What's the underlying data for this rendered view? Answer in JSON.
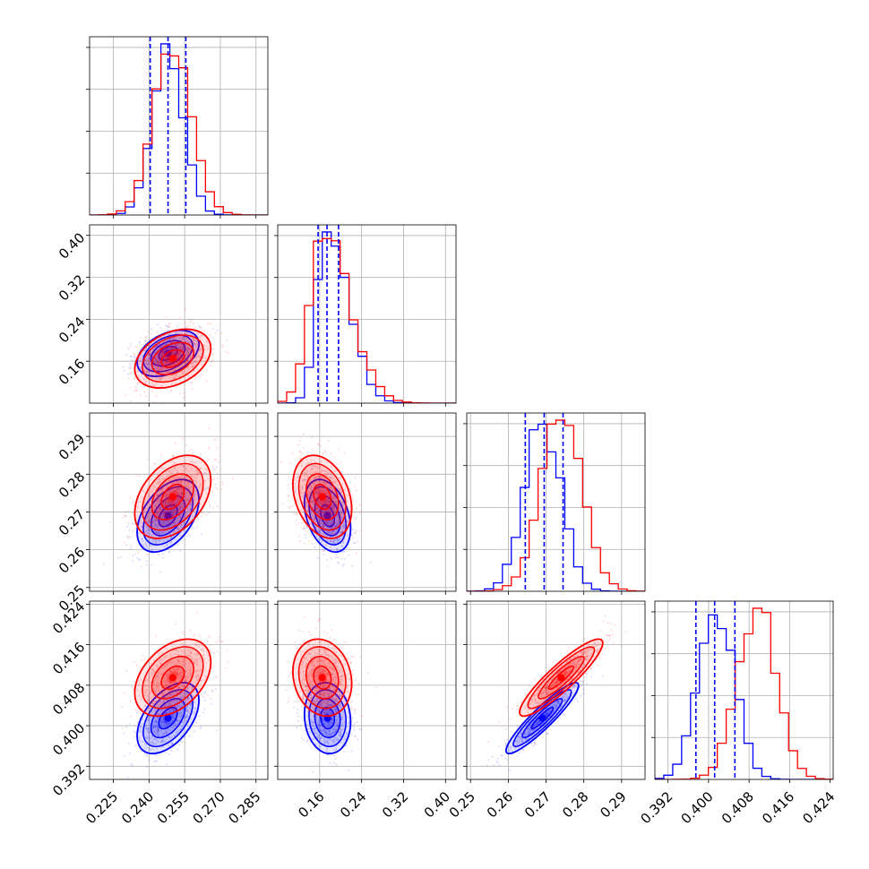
{
  "chart_data": {
    "type": "corner",
    "grid": true,
    "colors": {
      "series_a": "#0000ff",
      "series_b": "#ff0000"
    },
    "parameters": [
      {
        "range": [
          0.215,
          0.29
        ],
        "ticks": [
          0.225,
          0.24,
          0.255,
          0.27,
          0.285
        ],
        "tick_labels": [
          "0.225",
          "0.240",
          "0.255",
          "0.270",
          "0.285"
        ]
      },
      {
        "range": [
          0.08,
          0.42
        ],
        "ticks": [
          0.16,
          0.24,
          0.32,
          0.4
        ],
        "tick_labels": [
          "0.16",
          "0.24",
          "0.32",
          "0.40"
        ]
      },
      {
        "range": [
          0.249,
          0.2962
        ],
        "ticks": [
          0.25,
          0.26,
          0.27,
          0.28,
          0.29
        ],
        "tick_labels": [
          "0.25",
          "0.26",
          "0.27",
          "0.28",
          "0.29"
        ]
      },
      {
        "range": [
          0.3894,
          0.4246
        ],
        "ticks": [
          0.392,
          0.4,
          0.408,
          0.416,
          0.424
        ],
        "tick_labels": [
          "0.392",
          "0.400",
          "0.408",
          "0.416",
          "0.424"
        ]
      }
    ],
    "series": [
      {
        "color": "#0000ff",
        "means": [
          0.248,
          0.175,
          0.269,
          0.4015
        ],
        "sds": [
          0.0065,
          0.022,
          0.0048,
          0.0035
        ],
        "quantiles": [
          [
            0.2405,
            0.248,
            0.2555
          ],
          [
            0.157,
            0.174,
            0.196
          ],
          [
            0.2645,
            0.2695,
            0.2745
          ],
          [
            0.3975,
            0.4012,
            0.4052
          ]
        ],
        "correlations": {
          "0-1": 0.4,
          "0-2": 0.45,
          "0-3": 0.5,
          "1-2": -0.35,
          "1-3": -0.1,
          "2-3": 0.92
        }
      },
      {
        "color": "#ff0000",
        "means": [
          0.25,
          0.165,
          0.274,
          0.4095
        ],
        "sds": [
          0.008,
          0.028,
          0.0055,
          0.0038
        ],
        "correlations": {
          "0-1": 0.35,
          "0-2": 0.4,
          "0-3": 0.4,
          "1-2": -0.3,
          "1-3": -0.15,
          "2-3": 0.9
        }
      }
    ]
  }
}
